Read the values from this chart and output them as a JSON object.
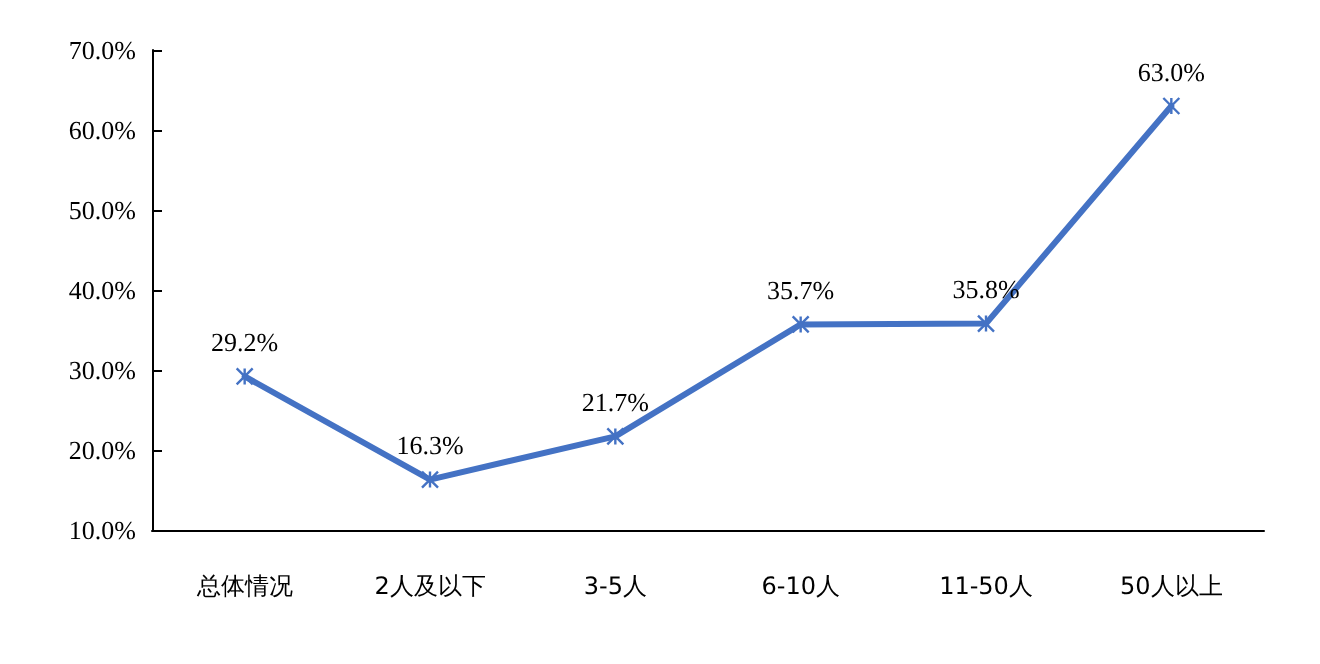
{
  "chart_data": {
    "type": "line",
    "categories": [
      "总体情况",
      "2人及以下",
      "3-5人",
      "6-10人",
      "11-50人",
      "50人以上"
    ],
    "series": [
      {
        "color": "#4472c4",
        "values": [
          29.2,
          16.3,
          21.7,
          35.7,
          35.8,
          63.0
        ],
        "value_labels": [
          "29.2%",
          "16.3%",
          "21.7%",
          "35.7%",
          "35.8%",
          "63.0%"
        ]
      }
    ],
    "ylim": [
      10,
      70
    ],
    "yticks": [
      {
        "value": 10,
        "label": "10.0%"
      },
      {
        "value": 20,
        "label": "20.0%"
      },
      {
        "value": 30,
        "label": "30.0%"
      },
      {
        "value": 40,
        "label": "40.0%"
      },
      {
        "value": 50,
        "label": "50.0%"
      },
      {
        "value": 60,
        "label": "60.0%"
      },
      {
        "value": 70,
        "label": "70.0%"
      }
    ],
    "grid": false,
    "marker": "cross",
    "line_style": "solid"
  }
}
